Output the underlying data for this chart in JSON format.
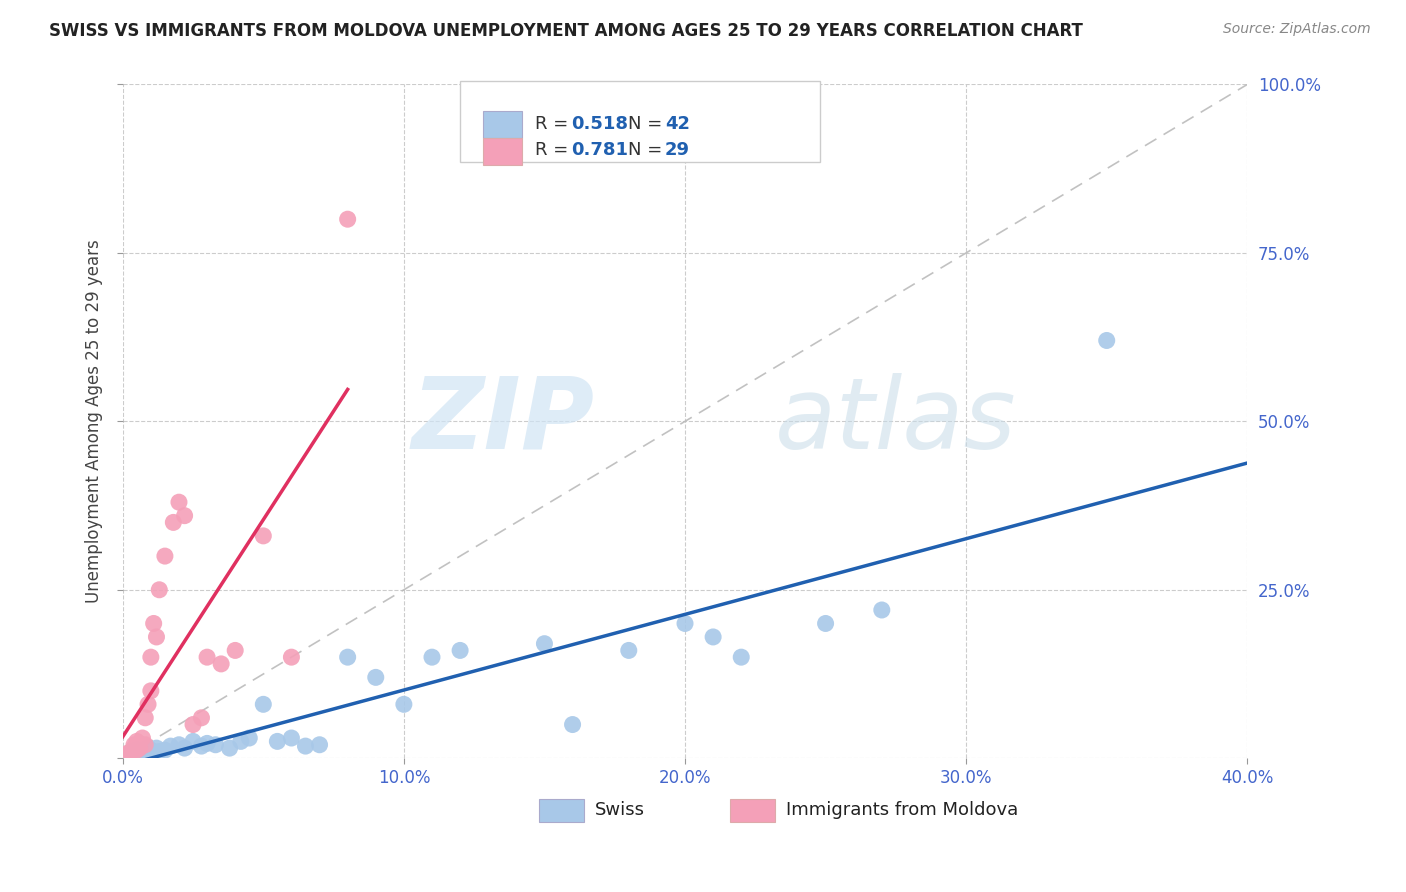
{
  "title": "SWISS VS IMMIGRANTS FROM MOLDOVA UNEMPLOYMENT AMONG AGES 25 TO 29 YEARS CORRELATION CHART",
  "source": "Source: ZipAtlas.com",
  "ylabel": "Unemployment Among Ages 25 to 29 years",
  "xlim": [
    0.0,
    0.4
  ],
  "ylim": [
    0.0,
    1.0
  ],
  "xticks": [
    0.0,
    0.1,
    0.2,
    0.3,
    0.4
  ],
  "yticks": [
    0.0,
    0.25,
    0.5,
    0.75,
    1.0
  ],
  "xtick_labels": [
    "0.0%",
    "10.0%",
    "20.0%",
    "30.0%",
    "40.0%"
  ],
  "ytick_labels": [
    "",
    "25.0%",
    "50.0%",
    "75.0%",
    "100.0%"
  ],
  "swiss_color": "#a8c8e8",
  "moldova_color": "#f4a0b8",
  "swiss_line_color": "#2060b0",
  "moldova_line_color": "#e03060",
  "swiss_R": 0.518,
  "swiss_N": 42,
  "moldova_R": 0.781,
  "moldova_N": 29,
  "swiss_scatter_x": [
    0.002,
    0.003,
    0.004,
    0.005,
    0.006,
    0.007,
    0.008,
    0.009,
    0.01,
    0.011,
    0.012,
    0.013,
    0.015,
    0.017,
    0.02,
    0.022,
    0.025,
    0.028,
    0.03,
    0.033,
    0.038,
    0.042,
    0.045,
    0.05,
    0.055,
    0.06,
    0.065,
    0.07,
    0.08,
    0.09,
    0.1,
    0.11,
    0.12,
    0.15,
    0.16,
    0.18,
    0.2,
    0.21,
    0.22,
    0.25,
    0.27,
    0.35
  ],
  "swiss_scatter_y": [
    0.005,
    0.008,
    0.01,
    0.012,
    0.006,
    0.01,
    0.008,
    0.015,
    0.012,
    0.008,
    0.015,
    0.01,
    0.012,
    0.018,
    0.02,
    0.015,
    0.025,
    0.018,
    0.022,
    0.02,
    0.015,
    0.025,
    0.03,
    0.08,
    0.025,
    0.03,
    0.018,
    0.02,
    0.15,
    0.12,
    0.08,
    0.15,
    0.16,
    0.17,
    0.05,
    0.16,
    0.2,
    0.18,
    0.15,
    0.2,
    0.22,
    0.62
  ],
  "moldova_scatter_x": [
    0.001,
    0.002,
    0.003,
    0.004,
    0.004,
    0.005,
    0.005,
    0.006,
    0.007,
    0.008,
    0.008,
    0.009,
    0.01,
    0.01,
    0.011,
    0.012,
    0.013,
    0.015,
    0.018,
    0.02,
    0.022,
    0.025,
    0.028,
    0.03,
    0.035,
    0.04,
    0.05,
    0.06,
    0.08
  ],
  "moldova_scatter_y": [
    0.005,
    0.008,
    0.01,
    0.015,
    0.02,
    0.012,
    0.025,
    0.015,
    0.03,
    0.02,
    0.06,
    0.08,
    0.1,
    0.15,
    0.2,
    0.18,
    0.25,
    0.3,
    0.35,
    0.38,
    0.36,
    0.05,
    0.06,
    0.15,
    0.14,
    0.16,
    0.33,
    0.15,
    0.8
  ],
  "watermark_zip": "ZIP",
  "watermark_atlas": "atlas",
  "background_color": "#ffffff",
  "grid_color": "#cccccc",
  "legend_text_color": "#333333",
  "legend_value_color": "#2060b0"
}
